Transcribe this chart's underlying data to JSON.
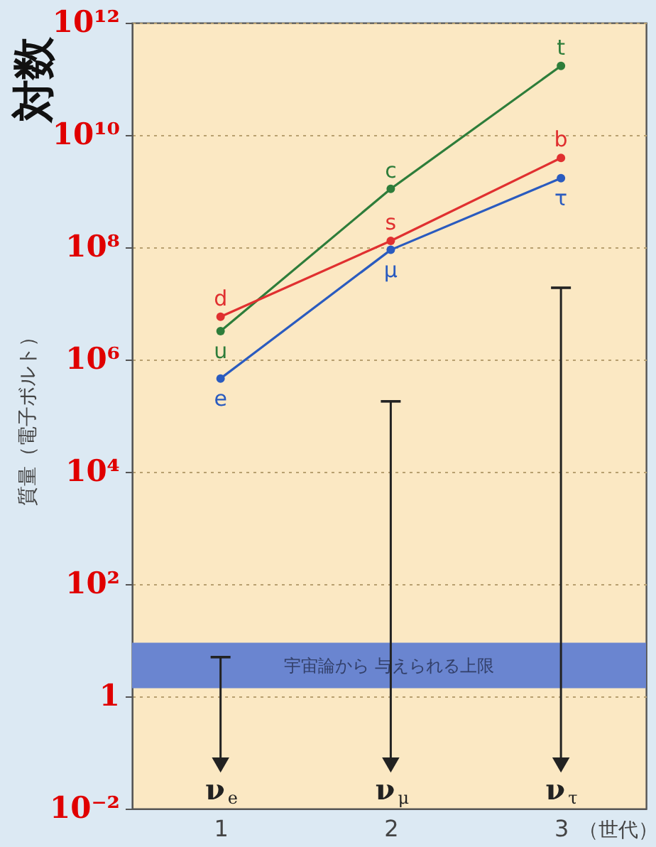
{
  "chart_data": {
    "type": "line",
    "title": "対数",
    "ylabel": "質量（電子ボルト）",
    "xlabel": "（世代）",
    "log": "y",
    "grid": "y",
    "marker": "circle",
    "xlim": [
      0.48,
      3.5
    ],
    "xticks": [
      1,
      2,
      3
    ],
    "ylim": [
      0.01,
      1000000000000.0
    ],
    "yticks": [
      {
        "value": 0.01,
        "label": "10⁻²"
      },
      1,
      {
        "value": 100,
        "label": "10²"
      },
      {
        "value": 10000,
        "label": "10⁴"
      },
      {
        "value": 1000000,
        "label": "10⁶"
      },
      {
        "value": 100000000,
        "label": "10⁸"
      },
      {
        "value": 10000000000,
        "label": "10¹⁰"
      },
      {
        "value": 1000000000000,
        "label": "10¹²"
      }
    ],
    "x": [
      1,
      2,
      3
    ],
    "series": [
      {
        "color": "#2e7d3a",
        "values": [
          3200000,
          1100000000,
          170000000000
        ],
        "value_labels": [
          "u",
          "c",
          "t"
        ]
      },
      {
        "color": "#e03030",
        "values": [
          5800000,
          130000000,
          3900000000
        ],
        "value_labels": [
          "d",
          "s",
          "b"
        ]
      },
      {
        "color": "#2a5bbf",
        "values": [
          460000,
          90000000,
          1700000000
        ],
        "value_labels": [
          "e",
          "μ",
          "τ"
        ]
      },
      {
        "type": "scatter",
        "marker": "triangle",
        "color": "#222222",
        "values": [
          0.06,
          0.06,
          0.06
        ],
        "errors": [
          [
            0.06,
            5
          ],
          [
            0.06,
            180000
          ],
          [
            0.06,
            19000000
          ]
        ],
        "value_labels": [
          "ν$_{e}$",
          "ν$_{μ}$",
          "ν$_{τ}$"
        ]
      }
    ],
    "bands": [
      {
        "axis": "y",
        "from": 1.4,
        "to": 9,
        "label": "宇宙論から 与えられる上限",
        "color": "#6a85d0"
      }
    ]
  }
}
